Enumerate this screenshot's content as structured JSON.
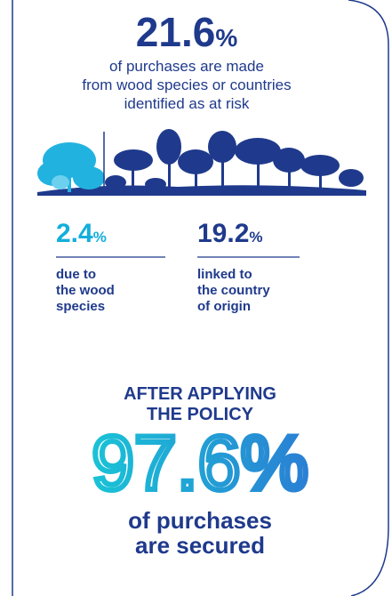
{
  "headline": {
    "value": "21.6",
    "unit": "%"
  },
  "headline_text": [
    "of purchases are made",
    "from wood species or countries",
    "identified as at risk"
  ],
  "breakdown": [
    {
      "value": "2.4",
      "unit": "%",
      "text": [
        "due to",
        "the wood",
        "species"
      ]
    },
    {
      "value": "19.2",
      "unit": "%",
      "text": [
        "linked to",
        "the country",
        "of origin"
      ]
    }
  ],
  "policy_title": [
    "AFTER APPLYING",
    "THE POLICY"
  ],
  "result": {
    "value": "97.6",
    "unit": "%"
  },
  "result_text": [
    "of purchases",
    "are secured"
  ]
}
